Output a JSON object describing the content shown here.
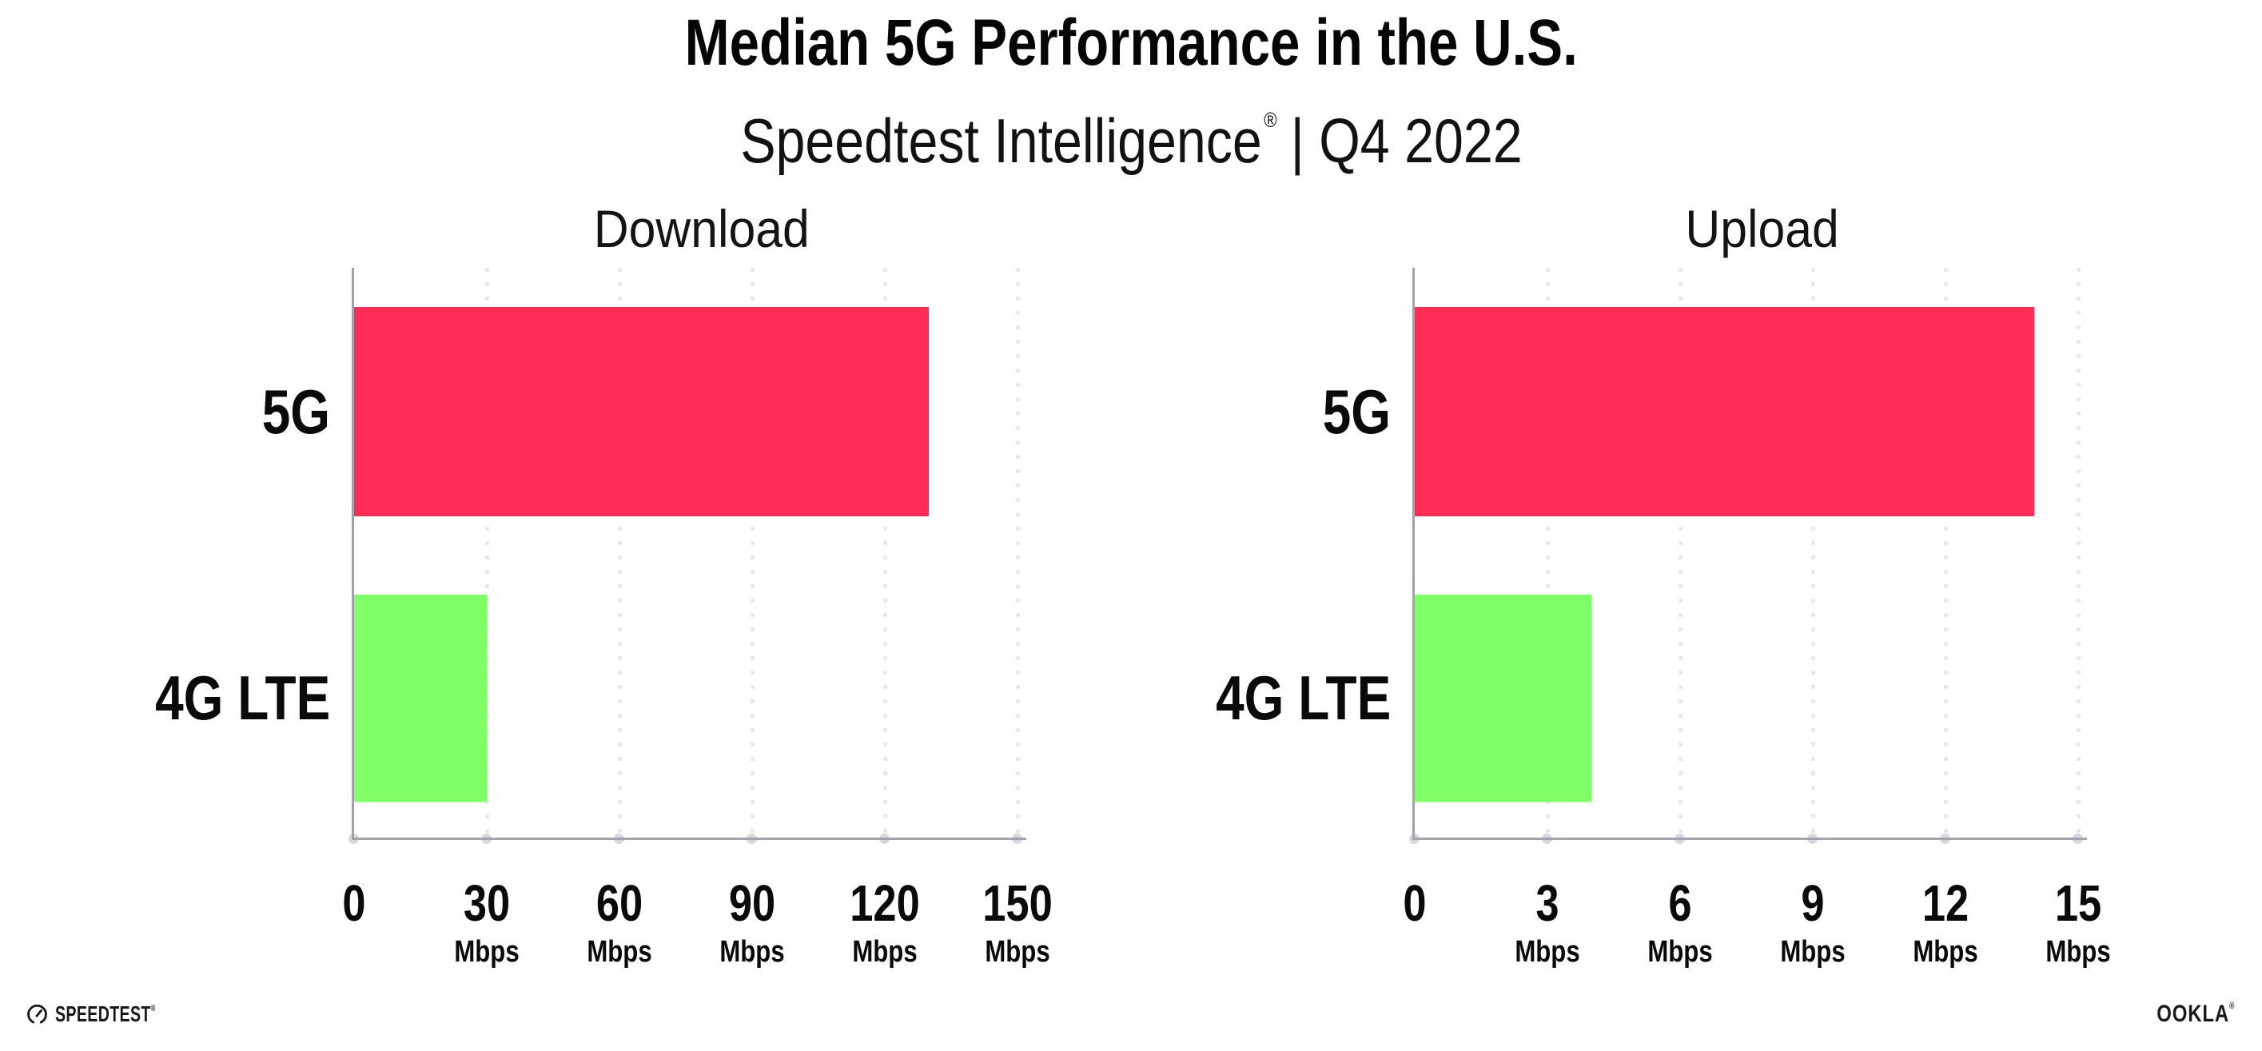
{
  "header": {
    "title": "Median 5G Performance in the U.S.",
    "subtitle_brand": "Speedtest Intelligence",
    "subtitle_registered": "®",
    "subtitle_period": "| Q4 2022",
    "subtitle_full": "Speedtest Intelligence® | Q4 2022"
  },
  "chart_data": {
    "type": "bar",
    "orientation": "horizontal",
    "title": "Median 5G Performance in the U.S.",
    "subtitle": "Speedtest Intelligence® | Q4 2022",
    "grid": "dotted vertical gridlines at each x tick",
    "legend_position": "none",
    "panels": [
      {
        "title": "Download",
        "categories": [
          "5G",
          "4G LTE"
        ],
        "values": [
          130,
          30
        ],
        "unit": "Mbps",
        "xlim": [
          0,
          150
        ],
        "xticks": [
          0,
          30,
          60,
          90,
          120,
          150
        ]
      },
      {
        "title": "Upload",
        "categories": [
          "5G",
          "4G LTE"
        ],
        "values": [
          14,
          4
        ],
        "unit": "Mbps",
        "xlim": [
          0,
          15
        ],
        "xticks": [
          0,
          3,
          6,
          9,
          12,
          15
        ]
      }
    ],
    "bar_colors": [
      "#FF2D55",
      "#80FF66"
    ]
  },
  "footer": {
    "speedtest_label": "SPEEDTEST",
    "speedtest_mark": "®",
    "ookla_label": "OOKLA",
    "ookla_mark": "®"
  },
  "colors": {
    "background": "#FFFFFF",
    "bar_5g": "#FF2D55",
    "bar_4g_lte": "#80FF66",
    "axis_line": "#A2A2AA",
    "axis_tick_dot": "#D7D7E1",
    "gridline_dot": "#E7E7F0",
    "text": "#0D0D0D"
  }
}
